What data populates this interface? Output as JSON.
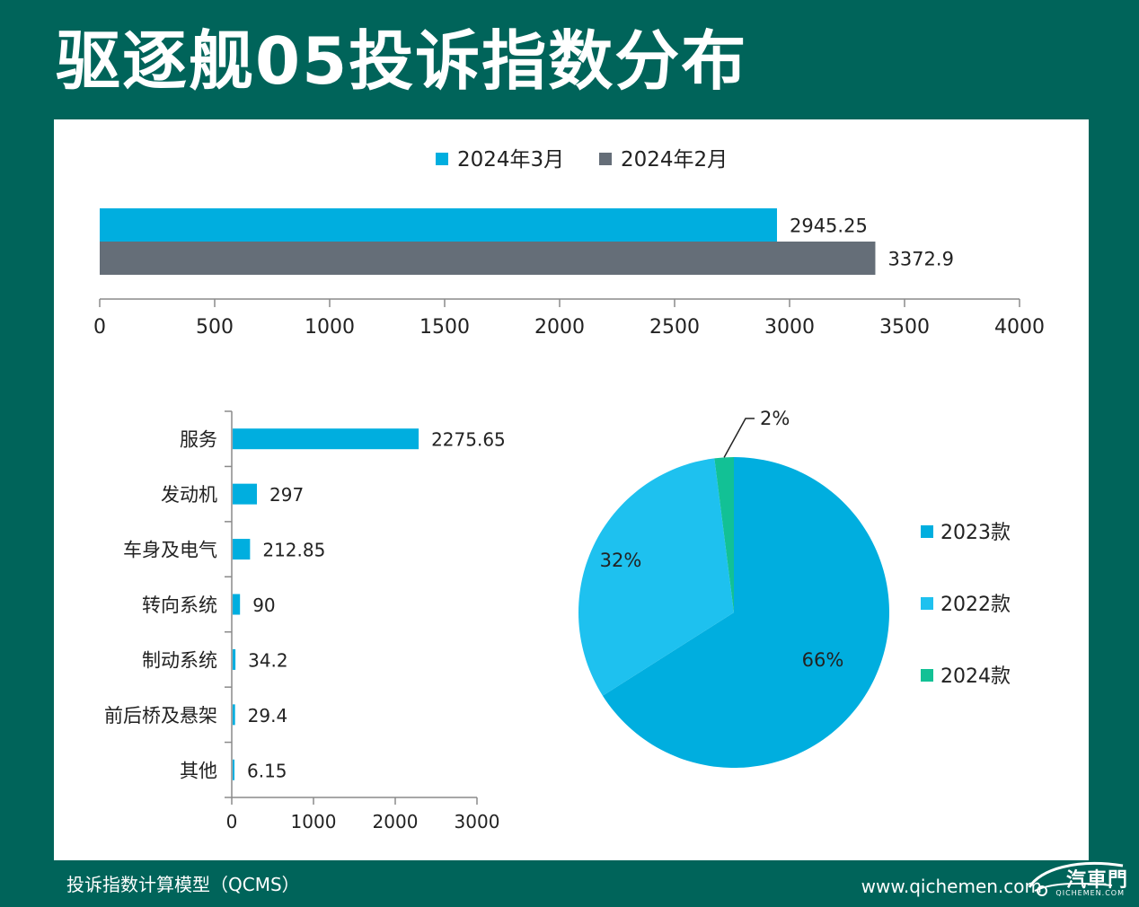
{
  "title": "驱逐舰05投诉指数分布",
  "footer": {
    "model": "投诉指数计算模型（QCMS）",
    "site": "www.qichemen.com",
    "logo_text": "汽車門",
    "logo_sub": "QICHEMEN.COM"
  },
  "colors": {
    "background": "#00645a",
    "panel": "#ffffff",
    "blue": "#00aedf",
    "gray": "#656e78",
    "light_blue": "#1ec1ef",
    "green": "#12c195",
    "axis": "#8a8a8a"
  },
  "chart_data": [
    {
      "type": "bar",
      "orientation": "horizontal",
      "series": [
        {
          "name": "2024年3月",
          "values": [
            2945.25
          ],
          "color": "#00aedf"
        },
        {
          "name": "2024年2月",
          "values": [
            3372.9
          ],
          "color": "#656e78"
        }
      ],
      "xlim": [
        0,
        4000
      ],
      "xticks": [
        0,
        500,
        1000,
        1500,
        2000,
        2500,
        3000,
        3500,
        4000
      ],
      "legend": "top"
    },
    {
      "type": "bar",
      "orientation": "horizontal",
      "categories": [
        "服务",
        "发动机",
        "车身及电气",
        "转向系统",
        "制动系统",
        "前后桥及悬架",
        "其他"
      ],
      "values": [
        2275.65,
        297,
        212.85,
        90,
        34.2,
        29.4,
        6.15
      ],
      "value_labels": [
        "2275.65",
        "297",
        "212.85",
        "90",
        "34.2",
        "29.4",
        "6.15"
      ],
      "xlim": [
        0,
        3000
      ],
      "xticks": [
        0,
        1000,
        2000,
        3000
      ],
      "color": "#00aedf"
    },
    {
      "type": "pie",
      "labels": [
        "2023款",
        "2022款",
        "2024款"
      ],
      "values": [
        66,
        32,
        2
      ],
      "value_labels": [
        "66%",
        "32%",
        "2%"
      ],
      "colors": [
        "#00aedf",
        "#1ec1ef",
        "#12c195"
      ],
      "legend": "right"
    }
  ]
}
